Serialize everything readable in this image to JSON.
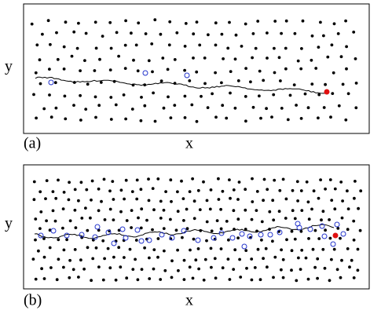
{
  "panels": [
    {
      "label": "(a)",
      "x_label": "x",
      "y_label": "y"
    },
    {
      "label": "(b)",
      "x_label": "x",
      "y_label": "y"
    }
  ]
}
